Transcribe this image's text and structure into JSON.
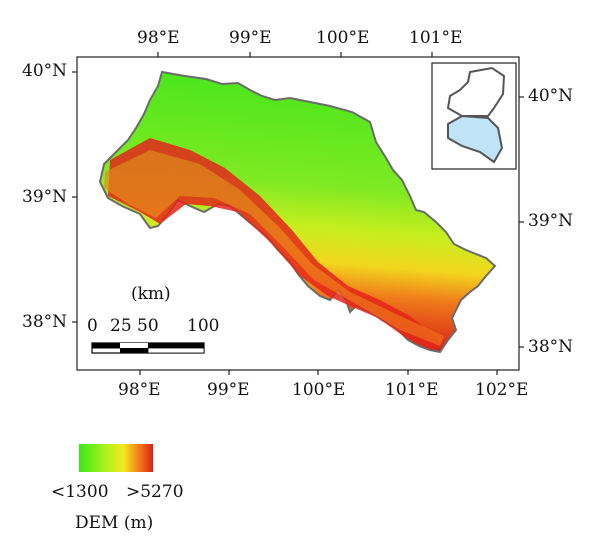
{
  "map": {
    "top_axis_labels": [
      "98°E",
      "99°E",
      "100°E",
      "101°E"
    ],
    "bottom_axis_labels": [
      "98°E",
      "99°E",
      "100°E",
      "101°E",
      "102°E"
    ],
    "left_axis_labels": [
      "40°N",
      "39°N",
      "38°N"
    ],
    "right_axis_labels": [
      "40°N",
      "39°N",
      "38°N"
    ]
  },
  "scale_bar": {
    "unit_label": "(km)",
    "tick_labels": [
      "0",
      "25",
      "50",
      "100"
    ]
  },
  "legend": {
    "min_label": "<1300",
    "max_label": ">5270",
    "title": "DEM (m)",
    "colors": [
      "#39e817",
      "#a8f21c",
      "#f4ea1e",
      "#f07a19",
      "#e11f1a"
    ]
  },
  "inset": {
    "highlight_color": "#bfe3f7",
    "outline_color": "#555555"
  }
}
